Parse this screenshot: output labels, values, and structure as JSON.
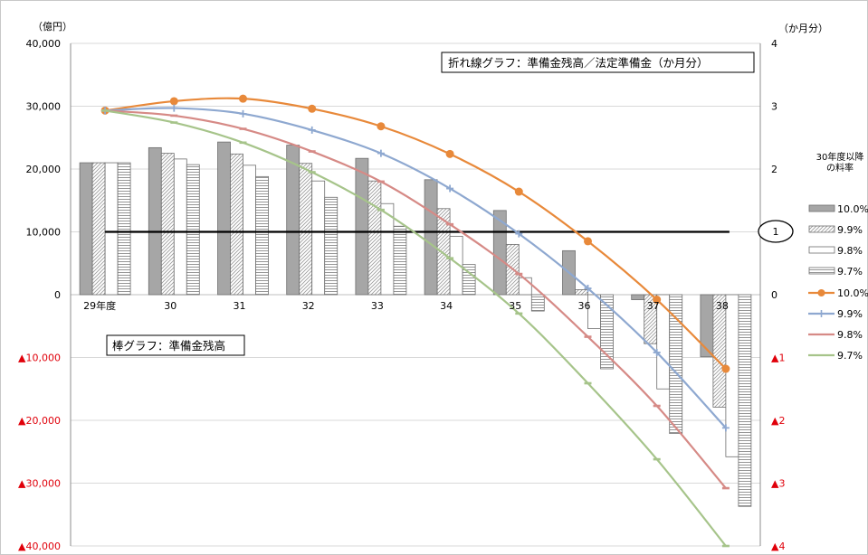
{
  "chart_data": {
    "type": "bar",
    "title": "",
    "categories": [
      "29年度",
      "30",
      "31",
      "32",
      "33",
      "34",
      "35",
      "36",
      "37",
      "38"
    ],
    "y_left": {
      "unit_label": "（億円）",
      "ylim": [
        -40000,
        40000
      ],
      "tick_labels": [
        "40,000",
        "30,000",
        "20,000",
        "10,000",
        "0",
        "▲10,000",
        "▲20,000",
        "▲30,000",
        "▲40,000"
      ]
    },
    "y_right": {
      "unit_label": "（か月分）",
      "ylim": [
        -4,
        4
      ],
      "tick_labels": [
        "4",
        "3",
        "2",
        "1",
        "0",
        "▲1",
        "▲2",
        "▲3",
        "▲4"
      ]
    },
    "bar_series": [
      {
        "name": "10.0%",
        "pattern": "solid-gray",
        "values": [
          21000,
          23400,
          24300,
          23800,
          21700,
          18300,
          13400,
          7000,
          -800,
          -9900
        ]
      },
      {
        "name": "9.9%",
        "pattern": "diagonal",
        "values": [
          21000,
          22500,
          22400,
          20900,
          18100,
          13700,
          8000,
          800,
          -7800,
          -17900
        ]
      },
      {
        "name": "9.8%",
        "pattern": "white",
        "values": [
          21000,
          21600,
          20600,
          18100,
          14500,
          9300,
          2700,
          -5400,
          -15000,
          -25800
        ]
      },
      {
        "name": "9.7%",
        "pattern": "horizontal-lines",
        "values": [
          21000,
          20700,
          18800,
          15500,
          10900,
          4800,
          -2600,
          -11800,
          -22100,
          -33700
        ]
      }
    ],
    "line_series": [
      {
        "name": "10.0%",
        "color": "#E8893A",
        "marker": "circle",
        "values": [
          2.93,
          3.08,
          3.12,
          2.96,
          2.68,
          2.24,
          1.64,
          0.85,
          -0.08,
          -1.18
        ]
      },
      {
        "name": "9.9%",
        "color": "#8EA8D0",
        "marker": "plus",
        "values": [
          2.93,
          2.97,
          2.88,
          2.62,
          2.25,
          1.69,
          0.97,
          0.1,
          -0.92,
          -2.12
        ]
      },
      {
        "name": "9.8%",
        "color": "#D68A86",
        "marker": "dash",
        "values": [
          2.93,
          2.85,
          2.64,
          2.28,
          1.8,
          1.12,
          0.33,
          -0.67,
          -1.77,
          -3.08
        ]
      },
      {
        "name": "9.7%",
        "color": "#A6C48A",
        "marker": "dash",
        "values": [
          2.93,
          2.74,
          2.42,
          1.95,
          1.35,
          0.58,
          -0.3,
          -1.41,
          -2.62,
          -4.0
        ]
      }
    ],
    "reference_line": {
      "value": 1,
      "label": "1"
    },
    "legend": {
      "title": "30年度以降\nの料率",
      "placement": "right"
    },
    "annotations": {
      "line_chart_note": "折れ線グラフ：準備金残高／法定準備金（か月分）",
      "bar_chart_note": "棒グラフ：準備金残高"
    },
    "colors": {
      "negative_tick": "#E0000A",
      "grid": "#D9D9D9",
      "axis_text": "#000000"
    }
  }
}
